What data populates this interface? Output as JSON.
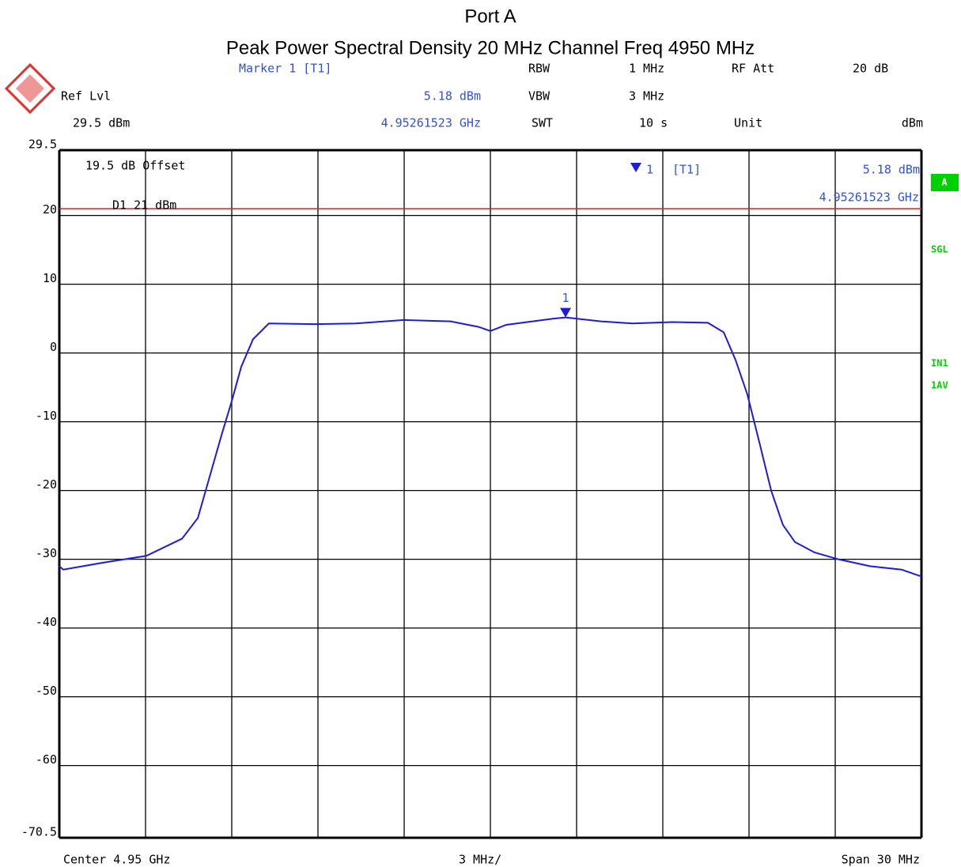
{
  "chart_data": {
    "type": "line",
    "title": "Port A",
    "subtitle": "Peak Power Spectral Density 20 MHz Channel Freq 4950 MHz",
    "info": {
      "marker_label": "Marker 1 [T1]",
      "rbw_label": "RBW",
      "rbw": "1 MHz",
      "rfatt_label": "RF Att",
      "rfatt": "20 dB",
      "reflvl_label": "Ref Lvl",
      "marker_level": "5.18 dBm",
      "vbw_label": "VBW",
      "vbw": "3 MHz",
      "reflvl": "29.5 dBm",
      "marker_freq": "4.95261523 GHz",
      "swt_label": "SWT",
      "swt": "10 s",
      "unit_label": "Unit",
      "unit": "dBm",
      "offset": "19.5 dB Offset",
      "box_marker_num": "1",
      "box_marker_trace": "[T1]",
      "box_marker_level": "5.18 dBm",
      "box_marker_freq": "4.95261523 GHz",
      "side_a": "A",
      "side_sgl": "SGL",
      "side_in1": "IN1",
      "side_1av": "1AV",
      "center": "Center 4.95 GHz",
      "per_div": "3 MHz/",
      "span": "Span 30 MHz"
    },
    "x": [
      4935.0,
      4935.14,
      4936.51,
      4938.03,
      4939.27,
      4939.82,
      4940.23,
      4940.64,
      4941.0,
      4941.33,
      4941.74,
      4942.29,
      4943.94,
      4945.32,
      4946.97,
      4948.62,
      4949.59,
      4950.0,
      4950.55,
      4952.2,
      4952.62,
      4953.85,
      4954.95,
      4956.33,
      4957.57,
      4958.12,
      4958.53,
      4958.94,
      4959.36,
      4959.77,
      4960.18,
      4960.6,
      4961.28,
      4962.11,
      4963.21,
      4964.31,
      4965.0
    ],
    "series": [
      {
        "name": "Trace 1",
        "color": "#1c1cdc",
        "values": [
          -31,
          -31.5,
          -30.5,
          -29.5,
          -27,
          -24,
          -18,
          -12,
          -7,
          -2,
          2,
          4.3,
          4.2,
          4.3,
          4.8,
          4.6,
          3.8,
          3.2,
          4.1,
          5.0,
          5.18,
          4.6,
          4.3,
          4.5,
          4.4,
          3,
          -1,
          -6,
          -13,
          -20,
          -25,
          -27.5,
          -29,
          -30,
          -31,
          -31.5,
          -32.5
        ]
      }
    ],
    "marker": {
      "label": "1",
      "x": 4952.61523,
      "y": 5.18,
      "color": "#1c1cdc"
    },
    "display_line": {
      "label": "D1 21 dBm",
      "value": 21,
      "color": "#e02020"
    },
    "xlim": [
      4935,
      4965
    ],
    "xticks": [
      4935,
      4938,
      4941,
      4944,
      4947,
      4950,
      4953,
      4956,
      4959,
      4962,
      4965
    ],
    "ylim": [
      -70.5,
      29.5
    ],
    "yticks": [
      29.5,
      20,
      10,
      0,
      -10,
      -20,
      -30,
      -40,
      -50,
      -60,
      -70.5
    ],
    "grid": true
  }
}
